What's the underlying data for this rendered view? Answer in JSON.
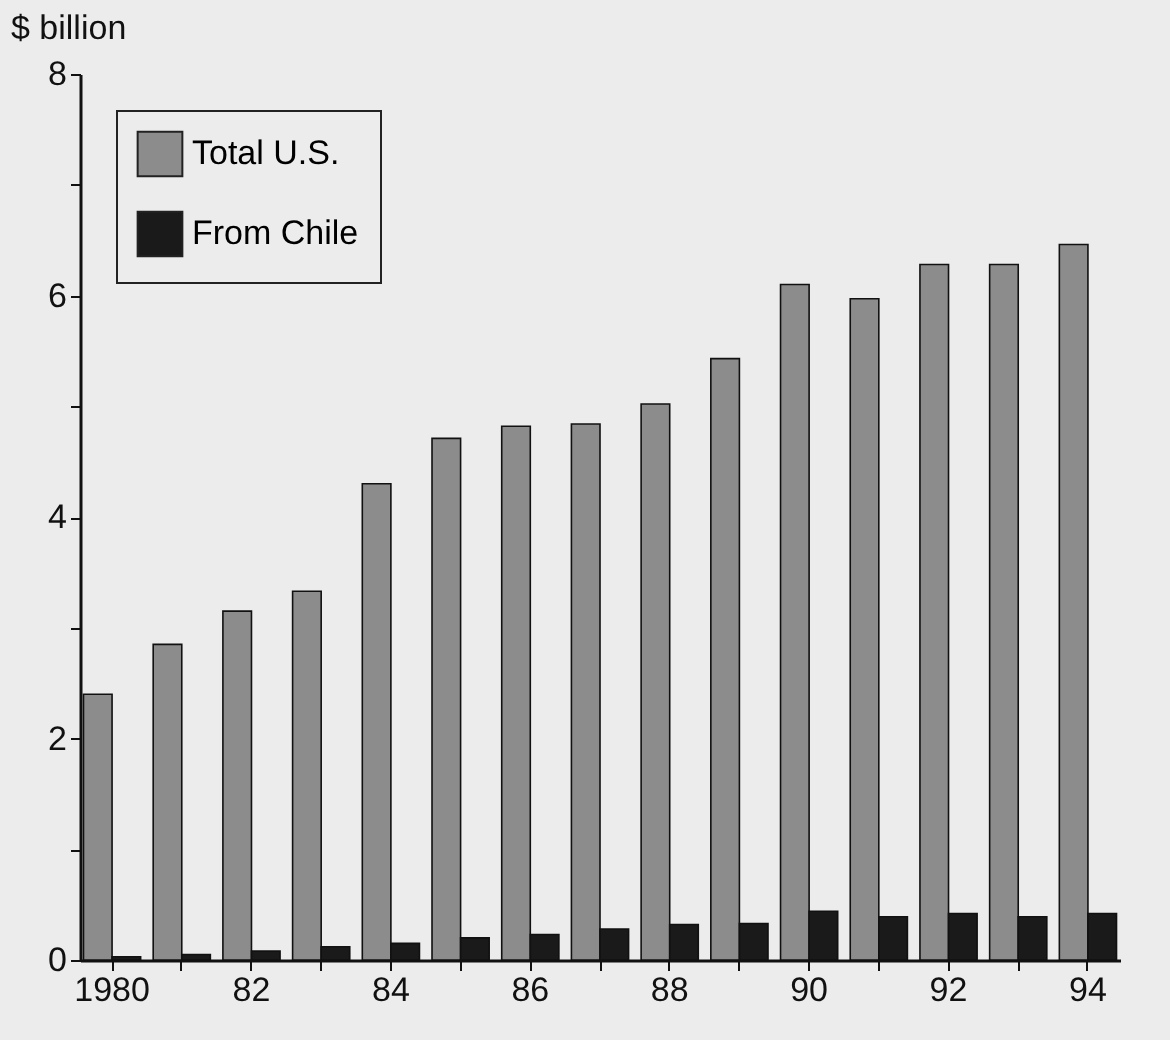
{
  "chart_data": {
    "type": "bar",
    "ylabel": "$ billion",
    "categories": [
      "1980",
      null,
      "82",
      null,
      "84",
      null,
      "86",
      null,
      "88",
      null,
      "90",
      null,
      "92",
      null,
      "94"
    ],
    "series": [
      {
        "name": "Total U.S.",
        "color": "#8c8c8c",
        "values": [
          2.4,
          2.85,
          3.15,
          3.33,
          4.3,
          4.71,
          4.82,
          4.84,
          5.02,
          5.43,
          6.1,
          5.97,
          6.28,
          6.28,
          6.46
        ]
      },
      {
        "name": "From Chile",
        "color": "#1a1a1a",
        "values": [
          0.03,
          0.05,
          0.08,
          0.12,
          0.15,
          0.2,
          0.23,
          0.28,
          0.32,
          0.33,
          0.44,
          0.39,
          0.42,
          0.39,
          0.42
        ]
      }
    ],
    "ylim": [
      0,
      8
    ],
    "yticks": [
      0,
      {
        "value": 1,
        "label": null
      },
      2,
      {
        "value": 3,
        "label": null
      },
      4,
      {
        "value": 5,
        "label": null
      },
      6,
      {
        "value": 7,
        "label": null
      },
      8
    ],
    "grid": false,
    "legend": "top left"
  }
}
